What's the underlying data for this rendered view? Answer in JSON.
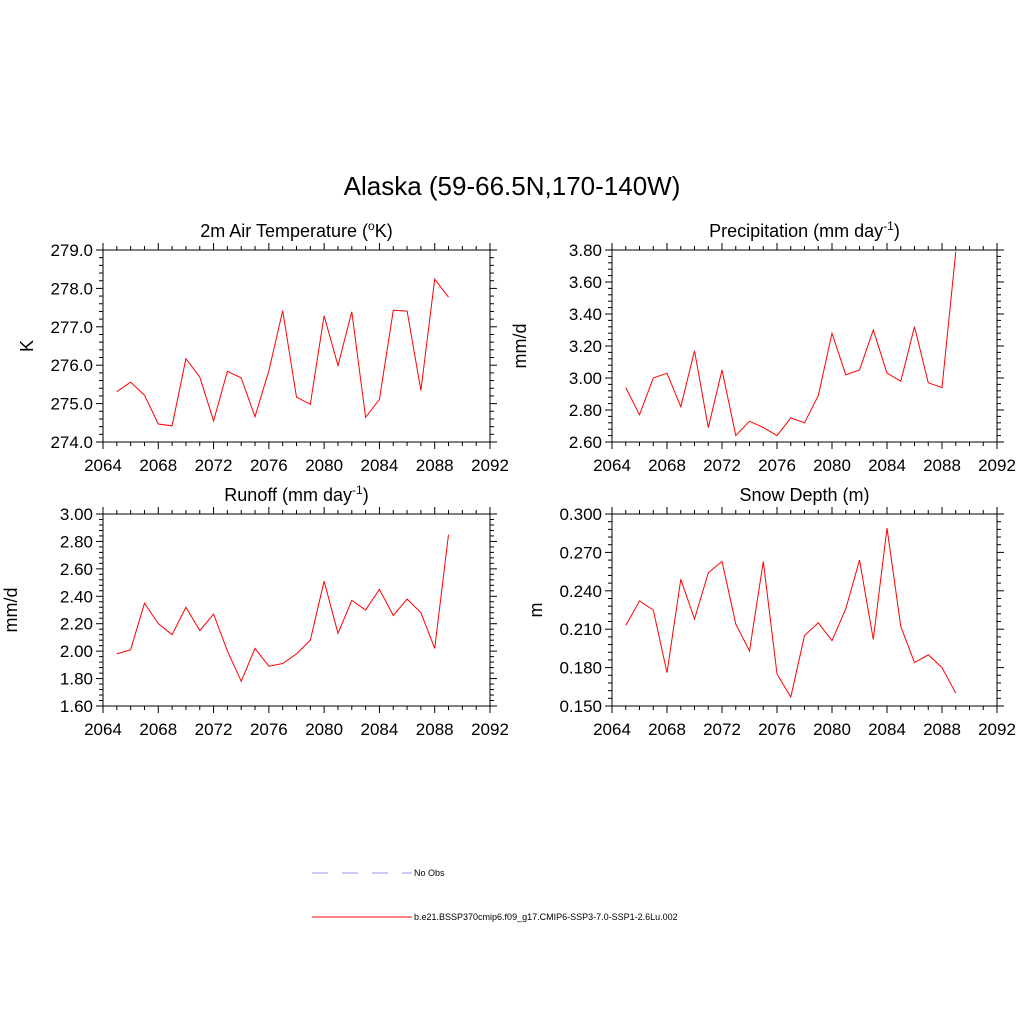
{
  "title": "Alaska (59-66.5N,170-140W)",
  "series_color": "#ff0000",
  "obs_color": "#9a9ae6",
  "legend": {
    "obs_label": "No Obs",
    "model_label": "b.e21.BSSP370cmip6.f09_g17.CMIP6-SSP3-7.0-SSP1-2.6Lu.002"
  },
  "chart_data": [
    {
      "type": "line",
      "title_main": "2m Air Temperature (",
      "title_sup": "o",
      "title_tail": "K)",
      "ylabel": "K",
      "xlim": [
        2064,
        2092
      ],
      "ylim": [
        274.0,
        279.0
      ],
      "xticks": [
        "2064",
        "2068",
        "2072",
        "2076",
        "2080",
        "2084",
        "2088",
        "2092"
      ],
      "yticks": [
        "274.0",
        "275.0",
        "276.0",
        "277.0",
        "278.0",
        "279.0"
      ],
      "x": [
        2065,
        2066,
        2067,
        2068,
        2069,
        2070,
        2071,
        2072,
        2073,
        2074,
        2075,
        2076,
        2077,
        2078,
        2079,
        2080,
        2081,
        2082,
        2083,
        2084,
        2085,
        2086,
        2087,
        2088,
        2089
      ],
      "values": [
        275.31,
        275.56,
        275.22,
        274.47,
        274.42,
        276.17,
        275.69,
        274.55,
        275.84,
        275.67,
        274.66,
        275.86,
        277.42,
        275.17,
        274.98,
        277.29,
        275.99,
        277.39,
        274.64,
        275.11,
        277.43,
        277.41,
        275.34,
        278.24,
        277.77
      ]
    },
    {
      "type": "line",
      "title_main": "Precipitation (mm day",
      "title_sup": "-1",
      "title_tail": ")",
      "ylabel": "mm/d",
      "xlim": [
        2064,
        2092
      ],
      "ylim": [
        2.6,
        3.8
      ],
      "xticks": [
        "2064",
        "2068",
        "2072",
        "2076",
        "2080",
        "2084",
        "2088",
        "2092"
      ],
      "yticks": [
        "2.60",
        "2.80",
        "3.00",
        "3.20",
        "3.40",
        "3.60",
        "3.80"
      ],
      "x": [
        2065,
        2066,
        2067,
        2068,
        2069,
        2070,
        2071,
        2072,
        2073,
        2074,
        2075,
        2076,
        2077,
        2078,
        2079,
        2080,
        2081,
        2082,
        2083,
        2084,
        2085,
        2086,
        2087,
        2088,
        2089
      ],
      "values": [
        2.94,
        2.77,
        3.0,
        3.03,
        2.82,
        3.17,
        2.69,
        3.05,
        2.64,
        2.73,
        2.69,
        2.64,
        2.75,
        2.72,
        2.89,
        3.28,
        3.02,
        3.05,
        3.3,
        3.03,
        2.98,
        3.32,
        2.97,
        2.94,
        3.79
      ]
    },
    {
      "type": "line",
      "title_main": "Runoff (mm day",
      "title_sup": "-1",
      "title_tail": ")",
      "ylabel": "mm/d",
      "xlim": [
        2064,
        2092
      ],
      "ylim": [
        1.6,
        3.0
      ],
      "xticks": [
        "2064",
        "2068",
        "2072",
        "2076",
        "2080",
        "2084",
        "2088",
        "2092"
      ],
      "yticks": [
        "1.60",
        "1.80",
        "2.00",
        "2.20",
        "2.40",
        "2.60",
        "2.80",
        "3.00"
      ],
      "x": [
        2065,
        2066,
        2067,
        2068,
        2069,
        2070,
        2071,
        2072,
        2073,
        2074,
        2075,
        2076,
        2077,
        2078,
        2079,
        2080,
        2081,
        2082,
        2083,
        2084,
        2085,
        2086,
        2087,
        2088,
        2089
      ],
      "values": [
        1.98,
        2.01,
        2.35,
        2.2,
        2.12,
        2.32,
        2.15,
        2.27,
        2.0,
        1.78,
        2.02,
        1.89,
        1.91,
        1.98,
        2.08,
        2.51,
        2.13,
        2.37,
        2.3,
        2.45,
        2.26,
        2.38,
        2.28,
        2.02,
        2.85
      ]
    },
    {
      "type": "line",
      "title_main": "Snow Depth (m)",
      "title_sup": "",
      "title_tail": "",
      "ylabel": "m",
      "xlim": [
        2064,
        2092
      ],
      "ylim": [
        0.15,
        0.3
      ],
      "xticks": [
        "2064",
        "2068",
        "2072",
        "2076",
        "2080",
        "2084",
        "2088",
        "2092"
      ],
      "yticks": [
        "0.150",
        "0.180",
        "0.210",
        "0.240",
        "0.270",
        "0.300"
      ],
      "x": [
        2065,
        2066,
        2067,
        2068,
        2069,
        2070,
        2071,
        2072,
        2073,
        2074,
        2075,
        2076,
        2077,
        2078,
        2079,
        2080,
        2081,
        2082,
        2083,
        2084,
        2085,
        2086,
        2087,
        2088,
        2089
      ],
      "values": [
        0.213,
        0.232,
        0.225,
        0.176,
        0.249,
        0.218,
        0.254,
        0.263,
        0.214,
        0.193,
        0.263,
        0.175,
        0.157,
        0.205,
        0.215,
        0.201,
        0.226,
        0.264,
        0.202,
        0.289,
        0.212,
        0.184,
        0.19,
        0.18,
        0.16
      ]
    }
  ]
}
